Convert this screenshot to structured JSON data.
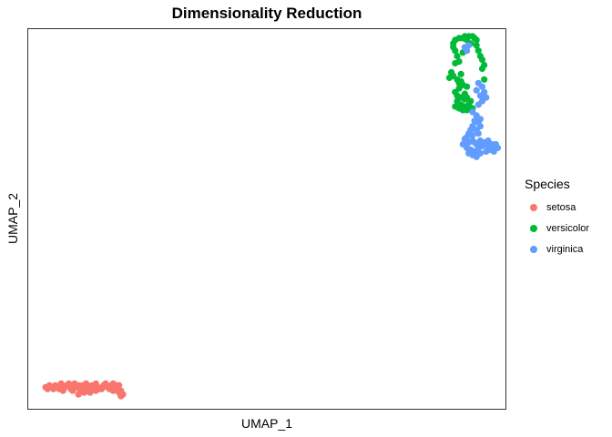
{
  "chart_data": {
    "type": "scatter",
    "title": "Dimensionality Reduction",
    "xlabel": "UMAP_1",
    "ylabel": "UMAP_2",
    "xlim": [
      -3.2,
      21.5
    ],
    "ylim": [
      -4.3,
      16.8
    ],
    "grid": false,
    "legend": {
      "title": "Species",
      "placement": "right",
      "entries": [
        "setosa",
        "versicolor",
        "virginica"
      ]
    },
    "series": [
      {
        "name": "setosa",
        "color": "#F8766D",
        "points": [
          [
            -2.3,
            -3.1
          ],
          [
            -2.1,
            -3.0
          ],
          [
            -1.9,
            -3.2
          ],
          [
            -1.7,
            -3.1
          ],
          [
            -1.5,
            -2.9
          ],
          [
            -1.4,
            -3.3
          ],
          [
            -1.2,
            -3.0
          ],
          [
            -1.0,
            -3.2
          ],
          [
            -0.9,
            -3.3
          ],
          [
            -0.8,
            -2.9
          ],
          [
            -0.7,
            -3.1
          ],
          [
            -0.6,
            -3.5
          ],
          [
            -0.5,
            -3.3
          ],
          [
            -0.4,
            -3.0
          ],
          [
            -0.3,
            -3.2
          ],
          [
            -0.2,
            -2.9
          ],
          [
            -0.1,
            -3.1
          ],
          [
            0.0,
            -3.3
          ],
          [
            0.1,
            -3.0
          ],
          [
            0.2,
            -3.2
          ],
          [
            0.3,
            -2.9
          ],
          [
            0.4,
            -3.1
          ],
          [
            0.5,
            -3.2
          ],
          [
            0.7,
            -3.0
          ],
          [
            0.9,
            -3.1
          ],
          [
            1.1,
            -3.0
          ],
          [
            1.2,
            -2.9
          ],
          [
            1.3,
            -3.1
          ],
          [
            1.4,
            -3.2
          ],
          [
            1.5,
            -3.4
          ],
          [
            1.6,
            -3.6
          ],
          [
            1.7,
            -3.5
          ],
          [
            -2.2,
            -3.2
          ],
          [
            -1.8,
            -3.0
          ],
          [
            -1.3,
            -3.1
          ],
          [
            -0.6,
            -3.0
          ],
          [
            0.0,
            -3.4
          ],
          [
            0.6,
            -3.2
          ],
          [
            1.0,
            -3.2
          ],
          [
            1.4,
            -3.0
          ],
          [
            -2.0,
            -3.1
          ],
          [
            -1.6,
            -3.2
          ],
          [
            -1.1,
            -2.9
          ],
          [
            -0.3,
            -3.4
          ],
          [
            0.3,
            -3.3
          ],
          [
            0.8,
            -2.9
          ],
          [
            1.5,
            -3.0
          ],
          [
            1.6,
            -3.3
          ],
          [
            -0.8,
            -3.0
          ],
          [
            1.2,
            -3.3
          ]
        ]
      },
      {
        "name": "versicolor",
        "color": "#00BA38",
        "points": [
          [
            18.8,
            16.0
          ],
          [
            18.9,
            16.2
          ],
          [
            19.1,
            16.3
          ],
          [
            19.3,
            16.3
          ],
          [
            19.4,
            16.4
          ],
          [
            19.5,
            16.2
          ],
          [
            19.6,
            16.4
          ],
          [
            19.8,
            16.4
          ],
          [
            19.9,
            16.3
          ],
          [
            20.0,
            16.2
          ],
          [
            18.8,
            15.8
          ],
          [
            18.9,
            15.6
          ],
          [
            19.0,
            15.3
          ],
          [
            19.1,
            15.0
          ],
          [
            18.9,
            14.9
          ],
          [
            20.1,
            15.6
          ],
          [
            20.2,
            15.3
          ],
          [
            20.3,
            15.1
          ],
          [
            20.4,
            14.8
          ],
          [
            20.3,
            14.6
          ],
          [
            18.7,
            14.4
          ],
          [
            18.6,
            14.1
          ],
          [
            18.8,
            14.2
          ],
          [
            19.0,
            14.0
          ],
          [
            19.1,
            13.8
          ],
          [
            19.2,
            13.9
          ],
          [
            20.4,
            14.0
          ],
          [
            19.3,
            13.7
          ],
          [
            19.1,
            13.5
          ],
          [
            18.9,
            13.3
          ],
          [
            19.0,
            13.1
          ],
          [
            19.2,
            13.0
          ],
          [
            19.4,
            13.2
          ],
          [
            19.5,
            13.0
          ],
          [
            19.7,
            12.8
          ],
          [
            19.0,
            12.8
          ],
          [
            19.2,
            12.6
          ],
          [
            19.4,
            12.5
          ],
          [
            19.1,
            12.4
          ],
          [
            19.3,
            12.3
          ],
          [
            19.6,
            12.6
          ],
          [
            19.5,
            12.3
          ],
          [
            18.9,
            12.5
          ],
          [
            19.8,
            12.4
          ],
          [
            19.3,
            15.5
          ],
          [
            19.7,
            16.0
          ],
          [
            20.0,
            15.9
          ],
          [
            19.2,
            14.3
          ],
          [
            19.5,
            13.6
          ],
          [
            19.4,
            12.9
          ]
        ]
      },
      {
        "name": "virginica",
        "color": "#619CFF",
        "points": [
          [
            19.4,
            15.8
          ],
          [
            19.5,
            15.6
          ],
          [
            19.6,
            15.9
          ],
          [
            20.1,
            13.8
          ],
          [
            20.3,
            13.6
          ],
          [
            20.4,
            13.3
          ],
          [
            20.2,
            13.1
          ],
          [
            20.5,
            13.0
          ],
          [
            20.3,
            12.8
          ],
          [
            20.0,
            13.4
          ],
          [
            20.1,
            12.6
          ],
          [
            19.8,
            12.2
          ],
          [
            20.0,
            12.0
          ],
          [
            20.2,
            11.8
          ],
          [
            20.1,
            11.6
          ],
          [
            19.8,
            11.4
          ],
          [
            20.0,
            11.2
          ],
          [
            19.6,
            11.0
          ],
          [
            19.8,
            10.9
          ],
          [
            20.1,
            11.0
          ],
          [
            19.4,
            10.7
          ],
          [
            19.6,
            10.5
          ],
          [
            19.8,
            10.6
          ],
          [
            20.0,
            10.4
          ],
          [
            20.2,
            10.6
          ],
          [
            20.3,
            10.3
          ],
          [
            19.5,
            10.2
          ],
          [
            19.7,
            10.1
          ],
          [
            19.9,
            10.0
          ],
          [
            20.1,
            10.2
          ],
          [
            20.4,
            10.5
          ],
          [
            20.6,
            10.3
          ],
          [
            20.8,
            10.4
          ],
          [
            20.9,
            10.2
          ],
          [
            21.0,
            10.4
          ],
          [
            20.7,
            10.1
          ],
          [
            20.9,
            10.0
          ],
          [
            19.6,
            9.9
          ],
          [
            19.8,
            9.8
          ],
          [
            20.0,
            9.7
          ],
          [
            20.2,
            9.9
          ],
          [
            19.3,
            10.4
          ],
          [
            19.5,
            10.8
          ],
          [
            19.9,
            10.5
          ],
          [
            20.5,
            10.0
          ],
          [
            20.6,
            10.6
          ],
          [
            21.1,
            10.2
          ],
          [
            19.7,
            11.2
          ],
          [
            20.2,
            11.4
          ],
          [
            19.9,
            11.7
          ]
        ]
      }
    ]
  }
}
